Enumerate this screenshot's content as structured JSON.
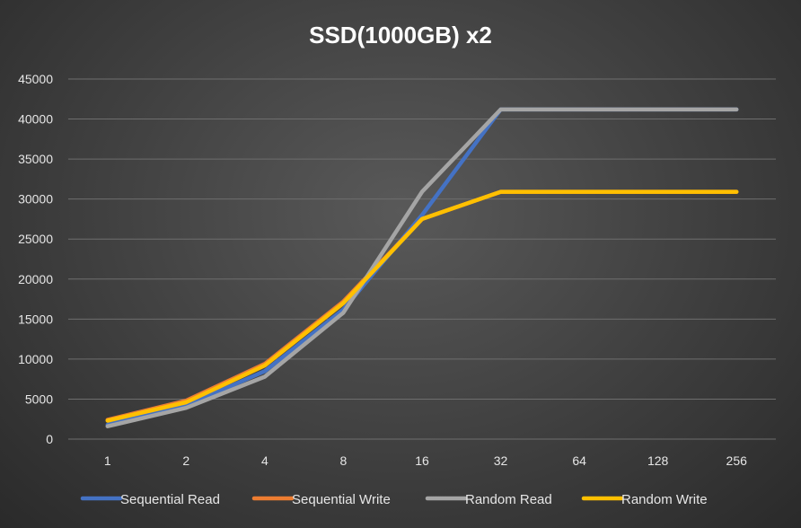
{
  "chart_data": {
    "type": "line",
    "title": "SSD(1000GB) x2",
    "xlabel": "",
    "ylabel": "",
    "categories": [
      "1",
      "2",
      "4",
      "8",
      "16",
      "32",
      "64",
      "128",
      "256"
    ],
    "ylim": [
      0,
      45000
    ],
    "yticks": [
      0,
      5000,
      10000,
      15000,
      20000,
      25000,
      30000,
      35000,
      40000,
      45000
    ],
    "grid": true,
    "legend_position": "bottom",
    "series": [
      {
        "name": "Sequential Read",
        "color": "#4472c4",
        "values": [
          1800,
          4200,
          8500,
          16200,
          28000,
          41200,
          41200,
          41200,
          41200
        ]
      },
      {
        "name": "Sequential Write",
        "color": "#ed7d31",
        "values": [
          2400,
          4800,
          9400,
          17200,
          27500,
          30900,
          30900,
          30900,
          30900
        ]
      },
      {
        "name": "Random Read",
        "color": "#a5a5a5",
        "values": [
          1600,
          3900,
          7800,
          15800,
          30900,
          41200,
          41200,
          41200,
          41200
        ]
      },
      {
        "name": "Random Write",
        "color": "#ffc000",
        "values": [
          2300,
          4600,
          9200,
          17000,
          27500,
          30900,
          30900,
          30900,
          30900
        ]
      }
    ]
  }
}
